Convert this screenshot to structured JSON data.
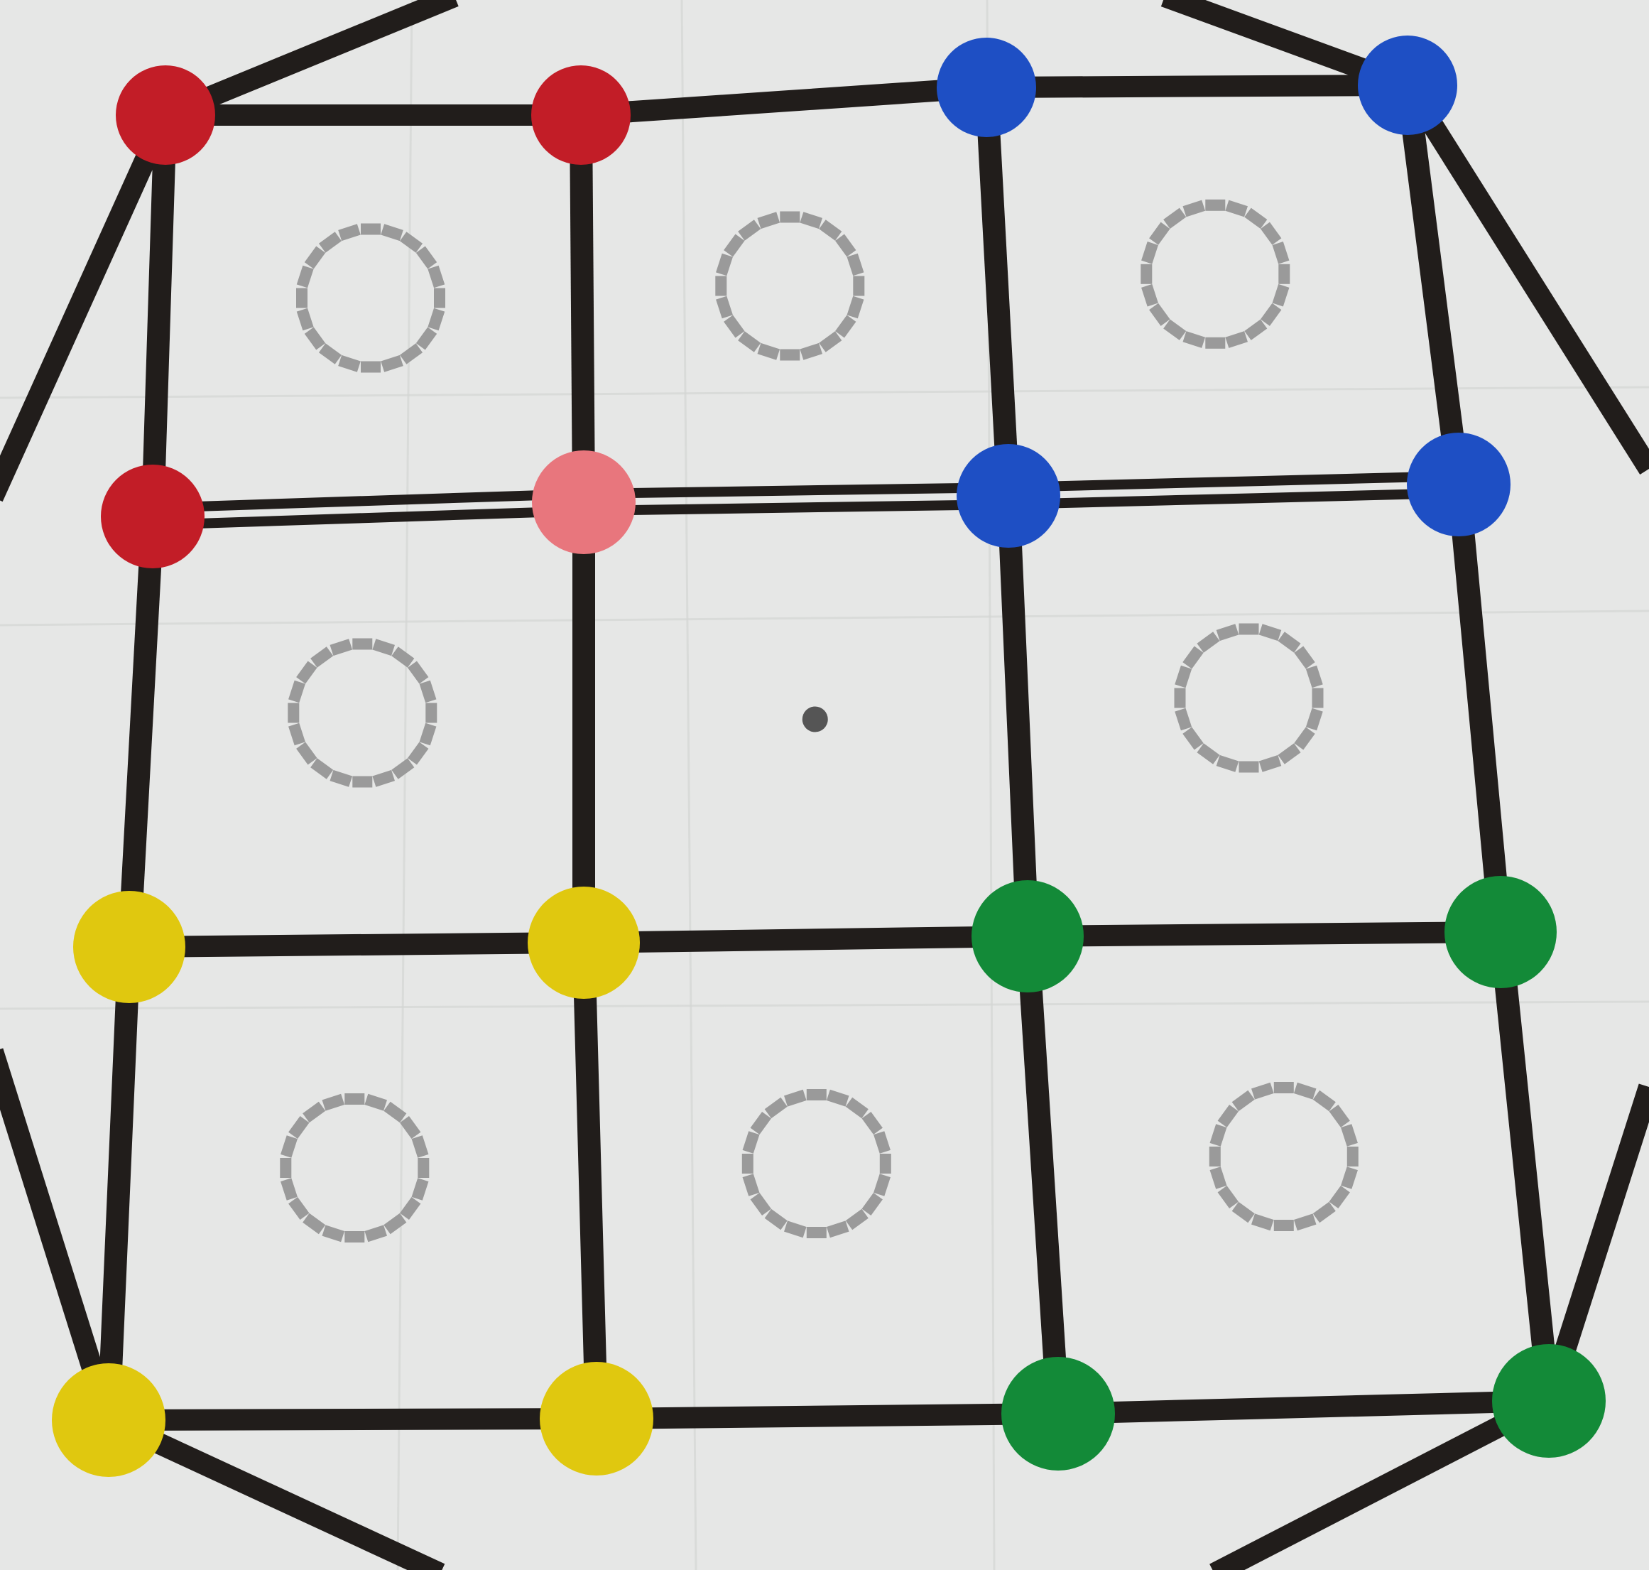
{
  "scene": {
    "subject": "tape-grid-floor-mat",
    "colors": {
      "background": "#e6e7e6",
      "crease": "#d4d6d4",
      "tape": "#211d1b",
      "ring_segment": "#9a9a9a",
      "center_dot": "#555555",
      "red": "#c21d27",
      "pink": "#e8767d",
      "blue": "#1e4fc4",
      "yellow": "#e0c80f",
      "green": "#138a38"
    },
    "grid": {
      "rows": 4,
      "columns": 4,
      "dot_count": 16,
      "dot_colors": [
        [
          "red",
          "red",
          "blue",
          "blue"
        ],
        [
          "red",
          "pink",
          "blue",
          "blue"
        ],
        [
          "yellow",
          "yellow",
          "green",
          "green"
        ],
        [
          "yellow",
          "yellow",
          "green",
          "green"
        ]
      ]
    },
    "cells": {
      "count": 9,
      "ring_segment_count": 20,
      "center_cell": "single-dot"
    }
  }
}
